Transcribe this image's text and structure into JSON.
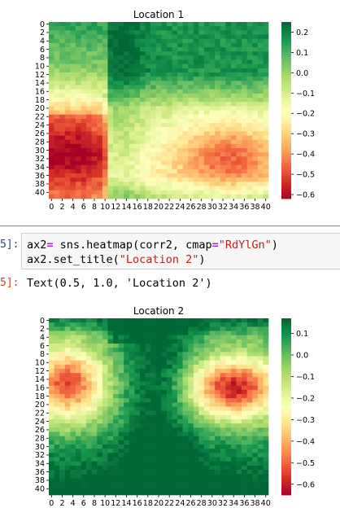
{
  "code_cell": {
    "input_prompt": "5]:",
    "line1_var": "ax2",
    "line1_op": "=",
    "line1_call": " sns.heatmap(corr2, cmap",
    "line1_op2": "=",
    "line1_str": "\"RdYlGn\"",
    "line1_end": ")",
    "line2_start": "ax2.set_title(",
    "line2_str": "\"Location 2\"",
    "line2_end": ")",
    "output_prompt": "5]:",
    "output_text": "Text(0.5, 1.0, 'Location 2')"
  },
  "chart_data": [
    {
      "type": "heatmap",
      "title": "Location 1",
      "cmap": "RdYlGn",
      "x_tick_labels": [
        "0",
        "2",
        "4",
        "6",
        "8",
        "10",
        "12",
        "14",
        "16",
        "18",
        "20",
        "22",
        "24",
        "26",
        "28",
        "30",
        "32",
        "34",
        "36",
        "38",
        "40"
      ],
      "y_tick_labels": [
        "0",
        "2",
        "4",
        "6",
        "8",
        "10",
        "12",
        "14",
        "16",
        "18",
        "20",
        "22",
        "24",
        "26",
        "28",
        "30",
        "32",
        "34",
        "36",
        "38",
        "40"
      ],
      "n_rows": 42,
      "n_cols": 41,
      "vmin": -0.62,
      "vmax": 0.25,
      "colorbar_ticks": [
        "0.2",
        "0.1",
        "0.0",
        "−0.1",
        "−0.2",
        "−0.3",
        "−0.4",
        "−0.5",
        "−0.6"
      ],
      "colorbar_tick_values": [
        0.2,
        0.1,
        0.0,
        -0.1,
        -0.2,
        -0.3,
        -0.4,
        -0.5,
        -0.6
      ]
    },
    {
      "type": "heatmap",
      "title": "Location 2",
      "cmap": "RdYlGn",
      "x_tick_labels": [
        "0",
        "2",
        "4",
        "6",
        "8",
        "10",
        "12",
        "14",
        "16",
        "18",
        "20",
        "22",
        "24",
        "26",
        "28",
        "30",
        "32",
        "34",
        "36",
        "38",
        "40"
      ],
      "y_tick_labels": [
        "0",
        "2",
        "4",
        "6",
        "8",
        "10",
        "12",
        "14",
        "16",
        "18",
        "20",
        "22",
        "24",
        "26",
        "28",
        "30",
        "32",
        "34",
        "36",
        "38",
        "40"
      ],
      "n_rows": 42,
      "n_cols": 41,
      "vmin": -0.65,
      "vmax": 0.17,
      "colorbar_ticks": [
        "0.1",
        "0.0",
        "−0.1",
        "−0.2",
        "−0.3",
        "−0.4",
        "−0.5",
        "−0.6"
      ],
      "colorbar_tick_values": [
        0.1,
        0.0,
        -0.1,
        -0.2,
        -0.3,
        -0.4,
        -0.5,
        -0.6
      ]
    }
  ],
  "colors": {
    "input_prompt": "#303f9f",
    "output_prompt": "#d84315",
    "cell_separator": "#4aa6a0"
  }
}
